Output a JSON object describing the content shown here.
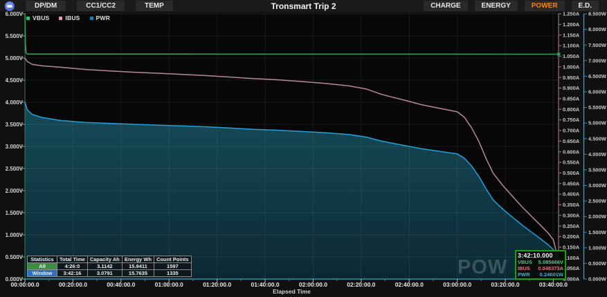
{
  "header": {
    "app_icon": "power-z-logo",
    "left_buttons": [
      {
        "id": "dp-dm",
        "label": "DP/DM"
      },
      {
        "id": "cc1-cc2",
        "label": "CC1/CC2"
      },
      {
        "id": "temp",
        "label": "TEMP"
      }
    ],
    "title": "Tronsmart Trip 2",
    "right_buttons": [
      {
        "id": "charge",
        "label": "CHARGE",
        "active": false
      },
      {
        "id": "energy",
        "label": "ENERGY",
        "active": false
      },
      {
        "id": "power",
        "label": "POWER",
        "active": true
      },
      {
        "id": "ed",
        "label": "E.D.",
        "active": false
      }
    ],
    "active_color": "#ff8400"
  },
  "legend": [
    {
      "id": "vbus",
      "label": "VBUS",
      "color": "#3dba6f"
    },
    {
      "id": "ibus",
      "label": "IBUS",
      "color": "#eb9aa6"
    },
    {
      "id": "pwr",
      "label": "PWR",
      "color": "#1f7fa0"
    }
  ],
  "chart_data": {
    "type": "line",
    "title": "Tronsmart Trip 2",
    "xlabel": "Elapsed Time",
    "grid": true,
    "x_axis": {
      "tick_labels": [
        "00:00:00.0",
        "00:20:00.0",
        "00:40:00.0",
        "01:00:00.0",
        "01:20:00.0",
        "01:40:00.0",
        "02:00:00.0",
        "02:20:00.0",
        "02:40:00.0",
        "03:00:00.0",
        "03:20:00.0",
        "03:40:00.0"
      ],
      "tick_minutes": [
        0,
        20,
        40,
        60,
        80,
        100,
        120,
        140,
        160,
        180,
        200,
        220
      ],
      "minor_tick_minutes": [
        10,
        30,
        50,
        70,
        90,
        110,
        130,
        150,
        170,
        190,
        210
      ],
      "range_minutes": [
        0,
        222.17
      ],
      "axis_color": "#2b93ad"
    },
    "axes": {
      "voltage": {
        "side": "left",
        "min": 0,
        "max": 6,
        "step": 0.5,
        "suffix": "V",
        "decimals": 3,
        "axis_color": "#3e7a58",
        "label_color": "#d6d6d6"
      },
      "current": {
        "side": "right",
        "min": 0,
        "max": 1.25,
        "step": 0.05,
        "suffix": "A",
        "decimals": 3,
        "axis_color": "#b5838d",
        "label_color": "#c9c9c9"
      },
      "power": {
        "side": "right-outer",
        "min": 0,
        "max": 8.5,
        "step": 0.5,
        "suffix": "W",
        "decimals": 3,
        "axis_color": "#2695c8",
        "label_color": "#c9c9c9"
      }
    },
    "series": [
      {
        "name": "VBUS",
        "axis": "voltage",
        "color": "#33a05e",
        "points": [
          [
            0,
            6.0
          ],
          [
            0.2,
            5.35
          ],
          [
            0.5,
            5.12
          ],
          [
            1,
            5.09
          ],
          [
            222.17,
            5.086
          ]
        ]
      },
      {
        "name": "IBUS",
        "axis": "current",
        "color": "#b98a92",
        "points": [
          [
            0,
            1.04
          ],
          [
            1,
            1.025
          ],
          [
            3,
            1.012
          ],
          [
            7,
            1.005
          ],
          [
            15,
            0.998
          ],
          [
            25,
            0.988
          ],
          [
            35,
            0.981
          ],
          [
            45,
            0.975
          ],
          [
            55,
            0.97
          ],
          [
            65,
            0.965
          ],
          [
            75,
            0.959
          ],
          [
            85,
            0.952
          ],
          [
            95,
            0.945
          ],
          [
            105,
            0.939
          ],
          [
            115,
            0.931
          ],
          [
            125,
            0.922
          ],
          [
            135,
            0.91
          ],
          [
            142,
            0.896
          ],
          [
            148,
            0.872
          ],
          [
            152,
            0.86
          ],
          [
            158,
            0.843
          ],
          [
            165,
            0.822
          ],
          [
            172,
            0.806
          ],
          [
            180,
            0.788
          ],
          [
            183,
            0.762
          ],
          [
            186,
            0.712
          ],
          [
            189,
            0.648
          ],
          [
            192,
            0.568
          ],
          [
            195,
            0.498
          ],
          [
            199,
            0.44
          ],
          [
            203,
            0.39
          ],
          [
            207,
            0.34
          ],
          [
            211,
            0.295
          ],
          [
            215,
            0.25
          ],
          [
            218,
            0.215
          ],
          [
            220,
            0.185
          ],
          [
            221,
            0.14
          ],
          [
            221.7,
            0.085
          ],
          [
            222.17,
            0.048
          ]
        ]
      },
      {
        "name": "PWR",
        "axis": "power",
        "color": "#22a2dc",
        "fill": true,
        "fill_top_color": "#17505f",
        "fill_bottom_color": "#0b2a35",
        "points": [
          [
            0,
            5.67
          ],
          [
            1,
            5.42
          ],
          [
            3,
            5.28
          ],
          [
            7,
            5.18
          ],
          [
            15,
            5.08
          ],
          [
            25,
            5.02
          ],
          [
            35,
            4.99
          ],
          [
            45,
            4.96
          ],
          [
            55,
            4.93
          ],
          [
            65,
            4.91
          ],
          [
            75,
            4.88
          ],
          [
            85,
            4.84
          ],
          [
            95,
            4.8
          ],
          [
            105,
            4.77
          ],
          [
            115,
            4.73
          ],
          [
            125,
            4.69
          ],
          [
            135,
            4.63
          ],
          [
            142,
            4.55
          ],
          [
            148,
            4.43
          ],
          [
            152,
            4.37
          ],
          [
            158,
            4.28
          ],
          [
            165,
            4.18
          ],
          [
            172,
            4.1
          ],
          [
            180,
            4.01
          ],
          [
            183,
            3.87
          ],
          [
            186,
            3.62
          ],
          [
            189,
            3.29
          ],
          [
            192,
            2.89
          ],
          [
            195,
            2.53
          ],
          [
            199,
            2.24
          ],
          [
            203,
            1.98
          ],
          [
            207,
            1.73
          ],
          [
            211,
            1.5
          ],
          [
            215,
            1.27
          ],
          [
            218,
            1.09
          ],
          [
            220,
            0.94
          ],
          [
            221,
            0.71
          ],
          [
            221.7,
            0.43
          ],
          [
            222.17,
            0.246
          ]
        ]
      }
    ]
  },
  "stats_table": {
    "headers": [
      "Statistics",
      "Total Time",
      "Capacity Ah",
      "Energy Wh",
      "Count Points"
    ],
    "rows": [
      {
        "label": "All",
        "label_bg": "#3c8d41",
        "values": [
          "4:26:0",
          "3.1142",
          "15.9411",
          "1597"
        ]
      },
      {
        "label": "Window",
        "label_bg": "#2d6fc2",
        "values": [
          "3:42:16",
          "3.0791",
          "15.7635",
          "1335"
        ]
      }
    ]
  },
  "tooltip": {
    "time": "3:42:10.000",
    "border_color": "#15a317",
    "rows": [
      {
        "label": "VBUS",
        "value": "5.085666V",
        "color": "#45d075"
      },
      {
        "label": "IBUS",
        "value": "0.048373A",
        "color": "#e07878"
      },
      {
        "label": "PWR",
        "value": "0.24601W",
        "color": "#30b4e8"
      }
    ]
  },
  "watermark": "POW"
}
